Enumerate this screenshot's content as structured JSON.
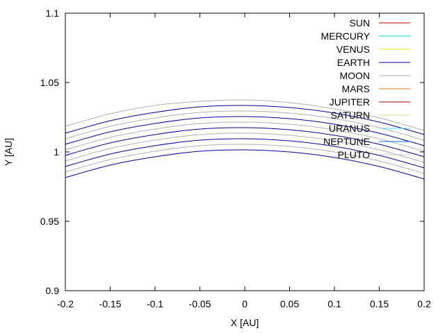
{
  "chart_data": {
    "type": "line",
    "title": "",
    "xlabel": "X [AU]",
    "ylabel": "Y [AU]",
    "xlim": [
      -0.2,
      0.2
    ],
    "ylim": [
      0.9,
      1.1
    ],
    "xticks": [
      -0.2,
      -0.15,
      -0.1,
      -0.05,
      0,
      0.05,
      0.1,
      0.15,
      0.2
    ],
    "xtick_labels": [
      "-0.2",
      "-0.15",
      "-0.1",
      "-0.05",
      "0",
      "0.05",
      "0.1",
      "0.15",
      "0.2"
    ],
    "yticks": [
      0.9,
      0.95,
      1,
      1.05,
      1.1
    ],
    "ytick_labels": [
      "0.9",
      "0.95",
      "1",
      "1.05",
      "1.1"
    ],
    "grid": false,
    "legend_position": "top-right",
    "legend": [
      {
        "name": "SUN",
        "color": "#c00000"
      },
      {
        "name": "MERCURY",
        "color": "#00d8d8"
      },
      {
        "name": "VENUS",
        "color": "#e8e800"
      },
      {
        "name": "EARTH",
        "color": "#0000a0"
      },
      {
        "name": "MOON",
        "color": "#b0b0b0"
      },
      {
        "name": "MARS",
        "color": "#e08000"
      },
      {
        "name": "JUPITER",
        "color": "#a00000"
      },
      {
        "name": "SATURN",
        "color": "#f0d890"
      },
      {
        "name": "URANUS",
        "color": "#40e0f0"
      },
      {
        "name": "NEPTUNE",
        "color": "#0070d0"
      },
      {
        "name": "PLUTO",
        "color": "#c8c8c8"
      }
    ],
    "series": [
      {
        "color": "#0000a0",
        "x": [
          -0.2,
          -0.15,
          -0.1,
          -0.05,
          0,
          0.05,
          0.1,
          0.15,
          0.2
        ],
        "y": [
          0.9815,
          0.9905,
          0.9965,
          1.0005,
          1.0015,
          1.0,
          0.996,
          0.9895,
          0.9805
        ]
      },
      {
        "color": "#b0b0b0",
        "x": [
          -0.2,
          -0.15,
          -0.1,
          -0.05,
          0,
          0.05,
          0.1,
          0.15,
          0.2
        ],
        "y": [
          0.9855,
          0.9945,
          1.0005,
          1.0045,
          1.0055,
          1.004,
          1.0,
          0.9935,
          0.9845
        ]
      },
      {
        "color": "#0000a0",
        "x": [
          -0.2,
          -0.15,
          -0.1,
          -0.05,
          0,
          0.05,
          0.1,
          0.15,
          0.2
        ],
        "y": [
          0.9895,
          0.9985,
          1.0045,
          1.0085,
          1.0095,
          1.008,
          1.004,
          0.9975,
          0.9885
        ]
      },
      {
        "color": "#b0b0b0",
        "x": [
          -0.2,
          -0.15,
          -0.1,
          -0.05,
          0,
          0.05,
          0.1,
          0.15,
          0.2
        ],
        "y": [
          0.9935,
          1.0025,
          1.0085,
          1.0125,
          1.0135,
          1.012,
          1.008,
          1.0015,
          0.9925
        ]
      },
      {
        "color": "#0000a0",
        "x": [
          -0.2,
          -0.15,
          -0.1,
          -0.05,
          0,
          0.05,
          0.1,
          0.15,
          0.2
        ],
        "y": [
          0.9975,
          1.0065,
          1.0125,
          1.0165,
          1.0175,
          1.016,
          1.012,
          1.0055,
          0.9965
        ]
      },
      {
        "color": "#b0b0b0",
        "x": [
          -0.2,
          -0.15,
          -0.1,
          -0.05,
          0,
          0.05,
          0.1,
          0.15,
          0.2
        ],
        "y": [
          1.0015,
          1.0105,
          1.0165,
          1.0205,
          1.0215,
          1.02,
          1.016,
          1.0095,
          1.0005
        ]
      },
      {
        "color": "#0000a0",
        "x": [
          -0.2,
          -0.15,
          -0.1,
          -0.05,
          0,
          0.05,
          0.1,
          0.15,
          0.2
        ],
        "y": [
          1.0055,
          1.0145,
          1.0205,
          1.0245,
          1.0255,
          1.024,
          1.02,
          1.0135,
          1.0045
        ]
      },
      {
        "color": "#b0b0b0",
        "x": [
          -0.2,
          -0.15,
          -0.1,
          -0.05,
          0,
          0.05,
          0.1,
          0.15,
          0.2
        ],
        "y": [
          1.0095,
          1.0185,
          1.0245,
          1.0285,
          1.0295,
          1.028,
          1.024,
          1.0175,
          1.0085
        ]
      },
      {
        "color": "#0000a0",
        "x": [
          -0.2,
          -0.15,
          -0.1,
          -0.05,
          0,
          0.05,
          0.1,
          0.15,
          0.2
        ],
        "y": [
          1.0135,
          1.0225,
          1.0285,
          1.0325,
          1.0335,
          1.032,
          1.028,
          1.0215,
          1.0125
        ]
      },
      {
        "color": "#b0b0b0",
        "x": [
          -0.2,
          -0.15,
          -0.1,
          -0.05,
          0,
          0.05,
          0.1,
          0.15,
          0.2
        ],
        "y": [
          1.0185,
          1.0275,
          1.0335,
          1.0365,
          1.0375,
          1.0355,
          1.031,
          1.0245,
          1.0155
        ]
      }
    ]
  }
}
